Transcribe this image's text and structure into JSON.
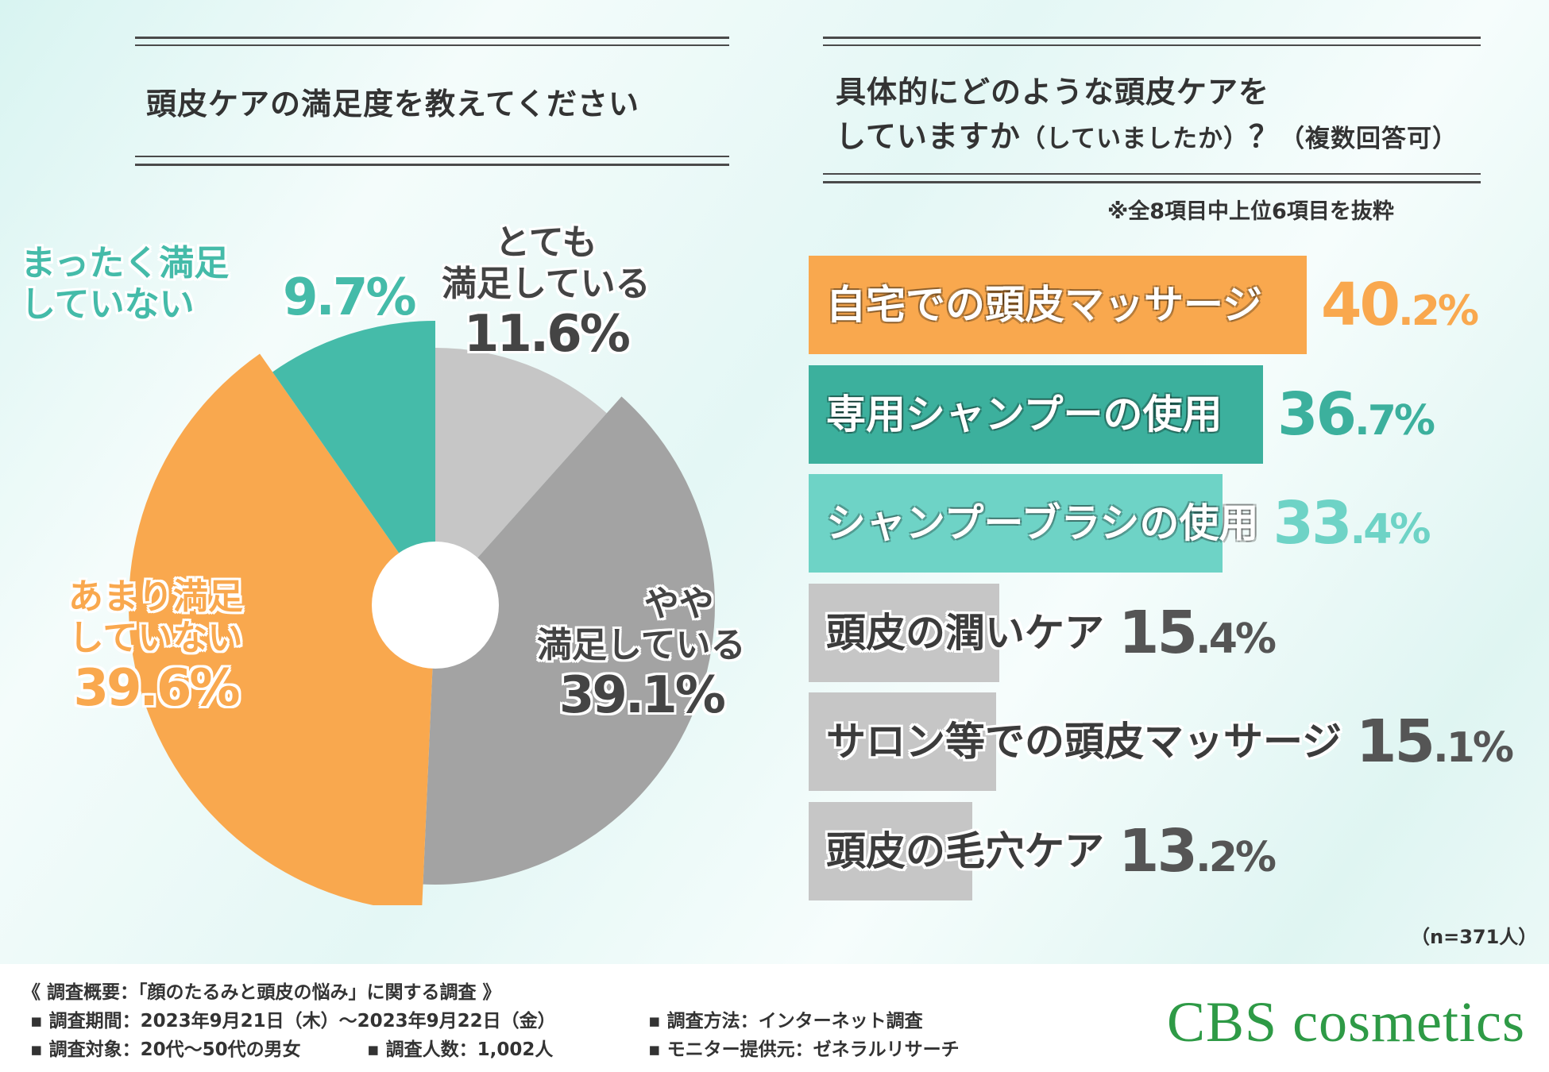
{
  "left_panel": {
    "title": "頭皮ケアの満足度を教えてください"
  },
  "right_panel": {
    "title_line1": "具体的にどのような頭皮ケアを",
    "title_line2_main": "していますか",
    "title_line2_paren": "（していましたか）",
    "title_line2_tail": "？",
    "title_line2_note": "（複数回答可）",
    "subnote": "※全8項目中上位6項目を抜粋",
    "n_label": "（n=371人）"
  },
  "chart_data": [
    {
      "type": "pie",
      "title": "頭皮ケアの満足度を教えてください",
      "donut_hole": true,
      "start": "top, clockwise",
      "slices": [
        {
          "label": "とても満足している",
          "value": 11.6,
          "color": "#c6c6c6",
          "label_line1": "とても",
          "label_line2": "満足している",
          "pct_text": "11.6%"
        },
        {
          "label": "やや満足している",
          "value": 39.1,
          "color": "#a3a3a3",
          "label_line1": "やや",
          "label_line2": "満足している",
          "pct_text": "39.1%"
        },
        {
          "label": "あまり満足していない",
          "value": 39.6,
          "color": "#f9a84e",
          "label_line1": "あまり満足",
          "label_line2": "していない",
          "pct_text": "39.6%"
        },
        {
          "label": "まったく満足していない",
          "value": 9.7,
          "color": "#45bba9",
          "label_line1": "まったく満足",
          "label_line2": "していない",
          "pct_text": "9.7%"
        }
      ]
    },
    {
      "type": "bar",
      "orientation": "horizontal",
      "title": "具体的にどのような頭皮ケアをしていますか（していましたか）？（複数回答可）",
      "xlim": [
        0,
        40.2
      ],
      "categories": [
        "自宅での頭皮マッサージ",
        "専用シャンプーの使用",
        "シャンプーブラシの使用",
        "頭皮の潤いケア",
        "サロン等での頭皮マッサージ",
        "頭皮の毛穴ケア"
      ],
      "values": [
        40.2,
        36.7,
        33.4,
        15.4,
        15.1,
        13.2
      ],
      "value_labels": [
        {
          "int": "40",
          "dec": ".2%"
        },
        {
          "int": "36",
          "dec": ".7%"
        },
        {
          "int": "33",
          "dec": ".4%"
        },
        {
          "int": "15",
          "dec": ".4%"
        },
        {
          "int": "15",
          "dec": ".1%"
        },
        {
          "int": "13",
          "dec": ".2%"
        }
      ],
      "bar_colors": [
        "#f9a84e",
        "#3cb09d",
        "#6ed3c6",
        "#c6c6c6",
        "#c6c6c6",
        "#c6c6c6"
      ],
      "value_colors": [
        "#f9a84e",
        "#3cb09d",
        "#6ed3c6",
        "#555555",
        "#555555",
        "#555555"
      ]
    }
  ],
  "footer": {
    "heading": "《 調査概要：「顔のたるみと頭皮の悩み」に関する調査 》",
    "period": "▪ 調査期間：2023年9月21日（木）～2023年9月22日（金）",
    "method": "▪ 調査方法：インターネット調査",
    "target": "▪ 調査対象：20代～50代の男女",
    "count": "▪ 調査人数：1,002人",
    "provider": "▪ モニター提供元：ゼネラルリサーチ",
    "logo": "CBS cosmetics"
  }
}
